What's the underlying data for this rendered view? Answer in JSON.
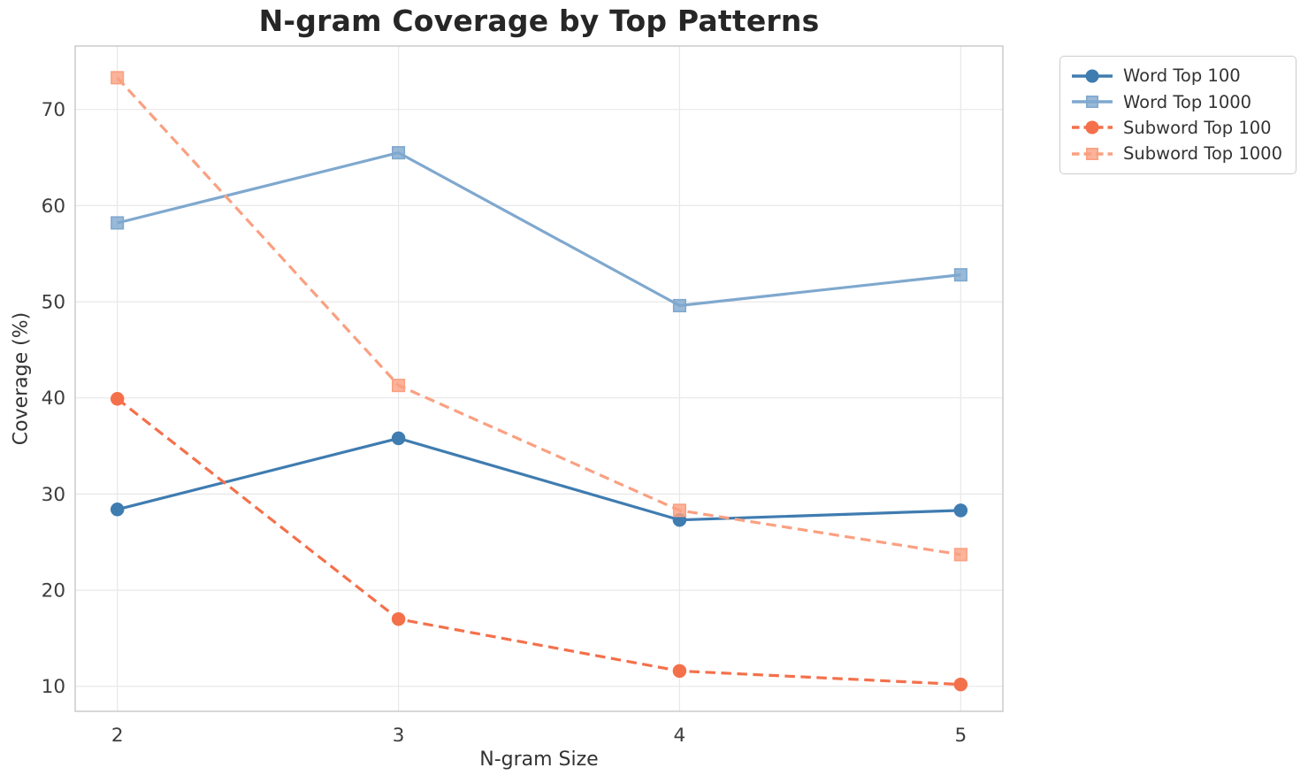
{
  "chart_data": {
    "type": "line",
    "title": "N-gram Coverage by Top Patterns",
    "xlabel": "N-gram Size",
    "ylabel": "Coverage (%)",
    "x": [
      2,
      3,
      4,
      5
    ],
    "x_ticks": [
      2,
      3,
      4,
      5
    ],
    "y_ticks": [
      10,
      20,
      30,
      40,
      50,
      60,
      70
    ],
    "xlim": [
      1.85,
      5.15
    ],
    "ylim": [
      7.4,
      76.6
    ],
    "grid": true,
    "legend_position": "outside-top-right",
    "series": [
      {
        "name": "Word Top 100",
        "values": [
          28.4,
          35.8,
          27.3,
          28.3
        ],
        "color": "#3f7cb0",
        "line_style": "solid",
        "marker": "circle"
      },
      {
        "name": "Word Top 1000",
        "values": [
          58.2,
          65.5,
          49.6,
          52.8
        ],
        "color": "#7fa8ce",
        "line_style": "solid",
        "marker": "square"
      },
      {
        "name": "Subword Top 100",
        "values": [
          39.9,
          17.0,
          11.6,
          10.2
        ],
        "color": "#f4704b",
        "line_style": "dashed",
        "marker": "circle"
      },
      {
        "name": "Subword Top 1000",
        "values": [
          73.3,
          41.3,
          28.3,
          23.7
        ],
        "color": "#faa081",
        "line_style": "dashed",
        "marker": "square"
      }
    ],
    "style": {
      "grid_color": "#e8e8e8",
      "spine_color": "#c8c8c8",
      "tick_color": "#3d3d3d",
      "title_color": "#262626"
    }
  }
}
